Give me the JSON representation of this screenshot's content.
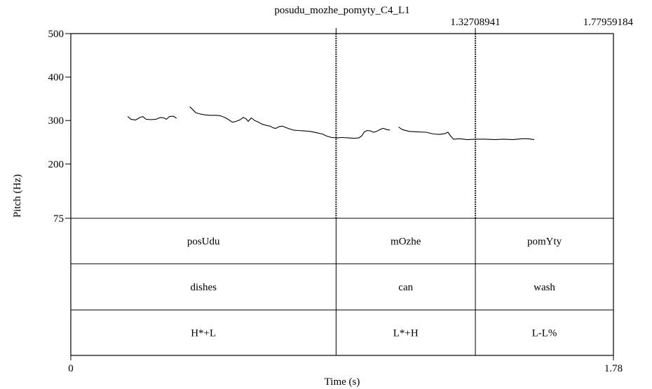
{
  "chart_data": {
    "type": "line",
    "title": "posudu_mozhe_pomyty_C4_L1",
    "xlabel": "Time (s)",
    "ylabel": "Pitch (Hz)",
    "xlim": [
      0,
      1.78
    ],
    "ylim": [
      75,
      500
    ],
    "x_ticks": [
      {
        "value": 0,
        "label": "0"
      },
      {
        "value": 1.78,
        "label": "1.78"
      }
    ],
    "y_ticks": [
      {
        "value": 500,
        "label": "500"
      },
      {
        "value": 400,
        "label": "400"
      },
      {
        "value": 300,
        "label": "300"
      },
      {
        "value": 200,
        "label": "200"
      },
      {
        "value": 75,
        "label": "75"
      }
    ],
    "boundaries": [
      {
        "time": 0.8702,
        "label": ""
      },
      {
        "time": 1.32708941,
        "label": "1.32708941"
      },
      {
        "time": 1.77959184,
        "label": "1.77959184"
      }
    ],
    "series": [
      {
        "segments": [
          [
            [
              0.187,
              309
            ],
            [
              0.197,
              303
            ],
            [
              0.212,
              301
            ],
            [
              0.227,
              307
            ],
            [
              0.236,
              309
            ],
            [
              0.247,
              303
            ],
            [
              0.262,
              302
            ],
            [
              0.28,
              303
            ],
            [
              0.294,
              307
            ],
            [
              0.305,
              306
            ],
            [
              0.314,
              303
            ],
            [
              0.323,
              309
            ],
            [
              0.336,
              310
            ],
            [
              0.347,
              305
            ]
          ],
          [
            [
              0.39,
              332
            ],
            [
              0.4,
              325
            ],
            [
              0.41,
              318
            ],
            [
              0.424,
              315
            ],
            [
              0.44,
              313
            ],
            [
              0.456,
              312
            ],
            [
              0.475,
              312
            ],
            [
              0.49,
              311
            ],
            [
              0.505,
              307
            ],
            [
              0.518,
              302
            ],
            [
              0.53,
              296
            ],
            [
              0.542,
              298
            ],
            [
              0.556,
              302
            ],
            [
              0.565,
              307
            ],
            [
              0.575,
              304
            ],
            [
              0.582,
              298
            ],
            [
              0.592,
              306
            ],
            [
              0.603,
              300
            ],
            [
              0.613,
              297
            ],
            [
              0.626,
              292
            ],
            [
              0.64,
              289
            ],
            [
              0.654,
              287
            ],
            [
              0.664,
              283
            ],
            [
              0.673,
              282
            ],
            [
              0.684,
              286
            ],
            [
              0.694,
              287
            ],
            [
              0.705,
              284
            ],
            [
              0.716,
              281
            ],
            [
              0.73,
              278
            ],
            [
              0.745,
              277
            ],
            [
              0.765,
              276
            ],
            [
              0.785,
              275
            ],
            [
              0.805,
              272
            ],
            [
              0.825,
              269
            ],
            [
              0.84,
              264
            ],
            [
              0.855,
              261
            ],
            [
              0.875,
              260
            ],
            [
              0.89,
              261
            ],
            [
              0.91,
              260
            ],
            [
              0.93,
              259
            ],
            [
              0.945,
              260
            ],
            [
              0.955,
              265
            ],
            [
              0.963,
              274
            ],
            [
              0.973,
              277
            ],
            [
              0.983,
              276
            ],
            [
              0.993,
              273
            ],
            [
              1.003,
              275
            ],
            [
              1.013,
              279
            ],
            [
              1.025,
              282
            ],
            [
              1.037,
              279
            ],
            [
              1.047,
              278
            ]
          ],
          [
            [
              1.075,
              285
            ],
            [
              1.088,
              279
            ],
            [
              1.11,
              275
            ],
            [
              1.135,
              274
            ],
            [
              1.165,
              273
            ],
            [
              1.19,
              269
            ],
            [
              1.21,
              268
            ],
            [
              1.228,
              270
            ],
            [
              1.237,
              273
            ],
            [
              1.245,
              265
            ],
            [
              1.255,
              257
            ],
            [
              1.275,
              258
            ],
            [
              1.3,
              256
            ],
            [
              1.33,
              257
            ],
            [
              1.36,
              257
            ],
            [
              1.39,
              256
            ],
            [
              1.42,
              257
            ],
            [
              1.45,
              256
            ],
            [
              1.48,
              258
            ],
            [
              1.5,
              258
            ],
            [
              1.52,
              256
            ]
          ]
        ]
      }
    ],
    "tiers": [
      {
        "intervals": [
          "posUdu",
          "mOzhe",
          "pomYty"
        ]
      },
      {
        "intervals": [
          "dishes",
          "can",
          "wash"
        ]
      },
      {
        "intervals": [
          "H*+L",
          "L*+H",
          "L-L%"
        ]
      }
    ]
  }
}
